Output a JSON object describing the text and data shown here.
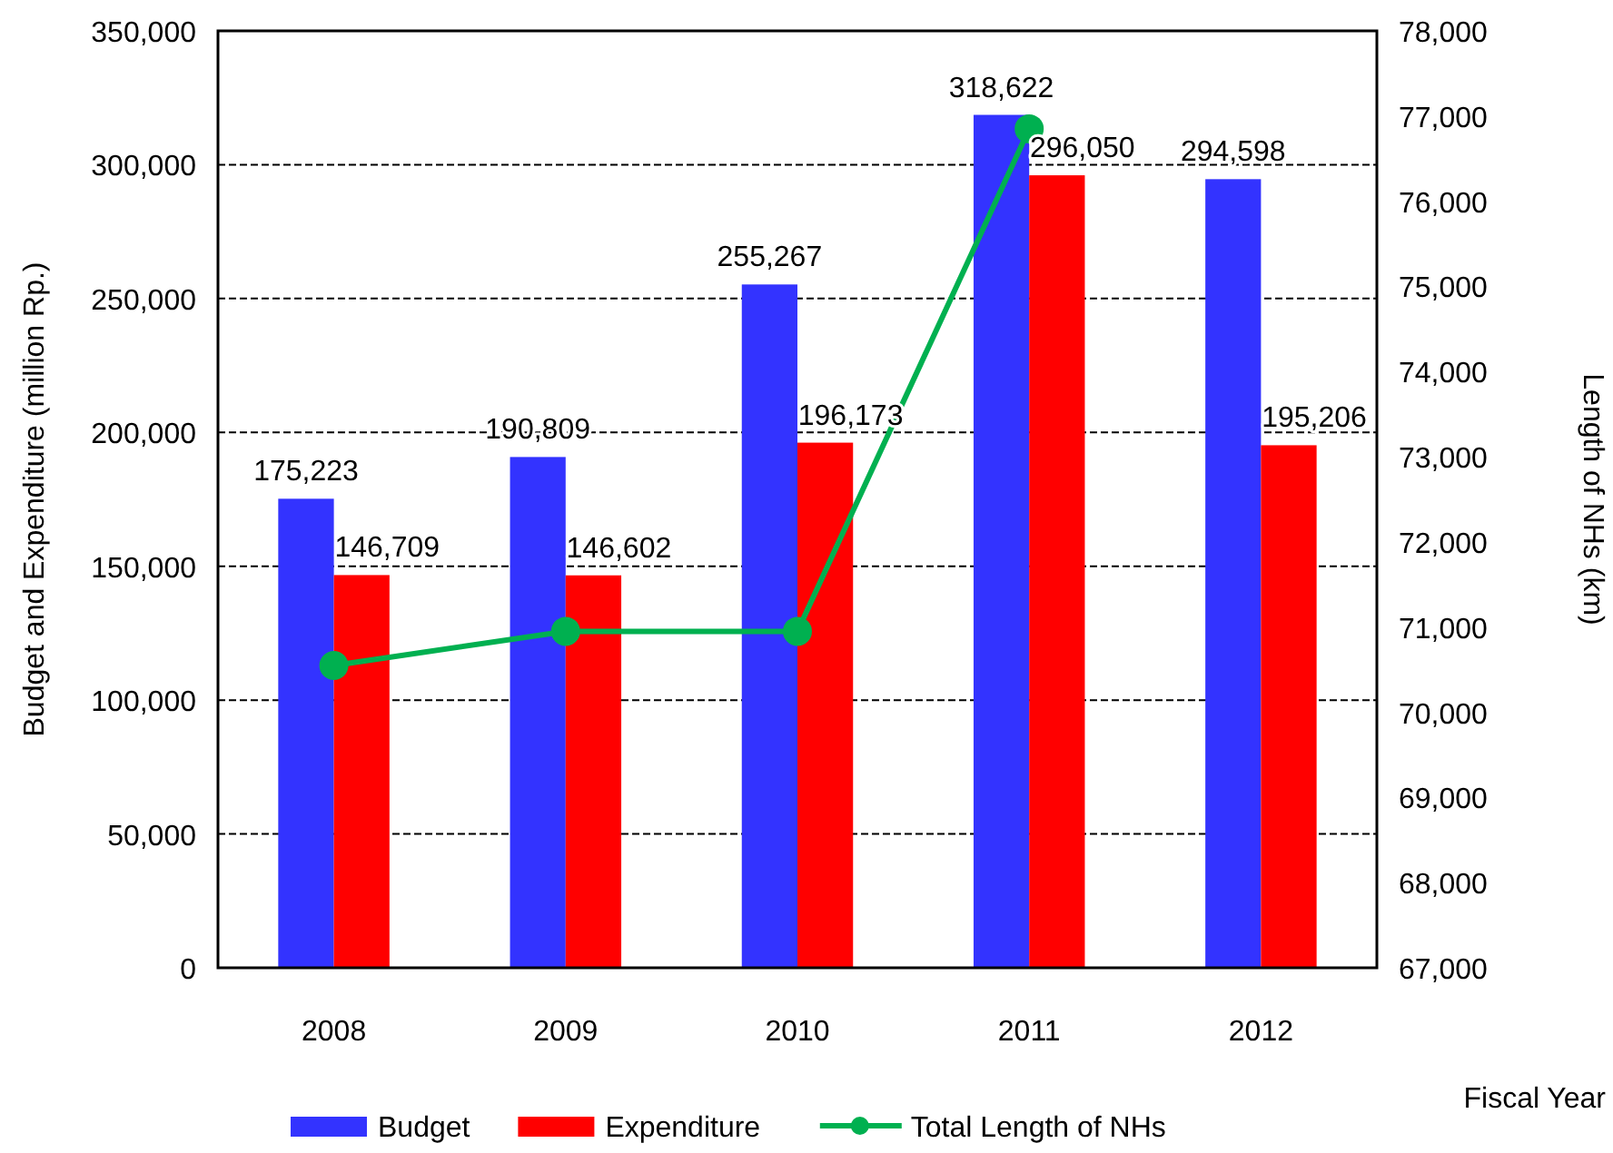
{
  "chart_data": {
    "type": "bar",
    "categories": [
      "2008",
      "2009",
      "2010",
      "2011",
      "2012"
    ],
    "xlabel": "Fiscal Year",
    "ylabel": "Budget and Expenditure (million Rp.)",
    "y2label": "Length  of NHs  (km)",
    "series": [
      {
        "name": "Budget",
        "color": "#3333ff",
        "values": [
          175223,
          190809,
          255267,
          318622,
          294598
        ],
        "value_labels": [
          "175,223",
          "190,809",
          "255,267",
          "318,622",
          "294,598"
        ]
      },
      {
        "name": "Expenditure",
        "color": "#ff0000",
        "values": [
          146709,
          146602,
          196173,
          296050,
          195206
        ],
        "value_labels": [
          "146,709",
          "146,602",
          "196,173",
          "296,050",
          "195,206"
        ]
      },
      {
        "name": "Total Length of NHs",
        "type": "line",
        "axis": "y2",
        "color": "#00b050",
        "marker": "circle",
        "values": [
          70550,
          70950,
          70950,
          76850,
          null
        ]
      }
    ],
    "ylim": [
      0,
      350000
    ],
    "yticks": [
      {
        "value": 0,
        "label": "0"
      },
      {
        "value": 50000,
        "label": "50,000"
      },
      {
        "value": 100000,
        "label": "100,000"
      },
      {
        "value": 150000,
        "label": "150,000"
      },
      {
        "value": 200000,
        "label": "200,000"
      },
      {
        "value": 250000,
        "label": "250,000"
      },
      {
        "value": 300000,
        "label": "300,000"
      },
      {
        "value": 350000,
        "label": "350,000"
      }
    ],
    "y2lim": [
      67000,
      78000
    ],
    "y2ticks": [
      {
        "value": 67000,
        "label": "67,000"
      },
      {
        "value": 68000,
        "label": "68,000"
      },
      {
        "value": 69000,
        "label": "69,000"
      },
      {
        "value": 70000,
        "label": "70,000"
      },
      {
        "value": 71000,
        "label": "71,000"
      },
      {
        "value": 72000,
        "label": "72,000"
      },
      {
        "value": 73000,
        "label": "73,000"
      },
      {
        "value": 74000,
        "label": "74,000"
      },
      {
        "value": 75000,
        "label": "75,000"
      },
      {
        "value": 76000,
        "label": "76,000"
      },
      {
        "value": 77000,
        "label": "77,000"
      },
      {
        "value": 78000,
        "label": "78,000"
      }
    ],
    "grid": "y",
    "legend": "bottom"
  }
}
